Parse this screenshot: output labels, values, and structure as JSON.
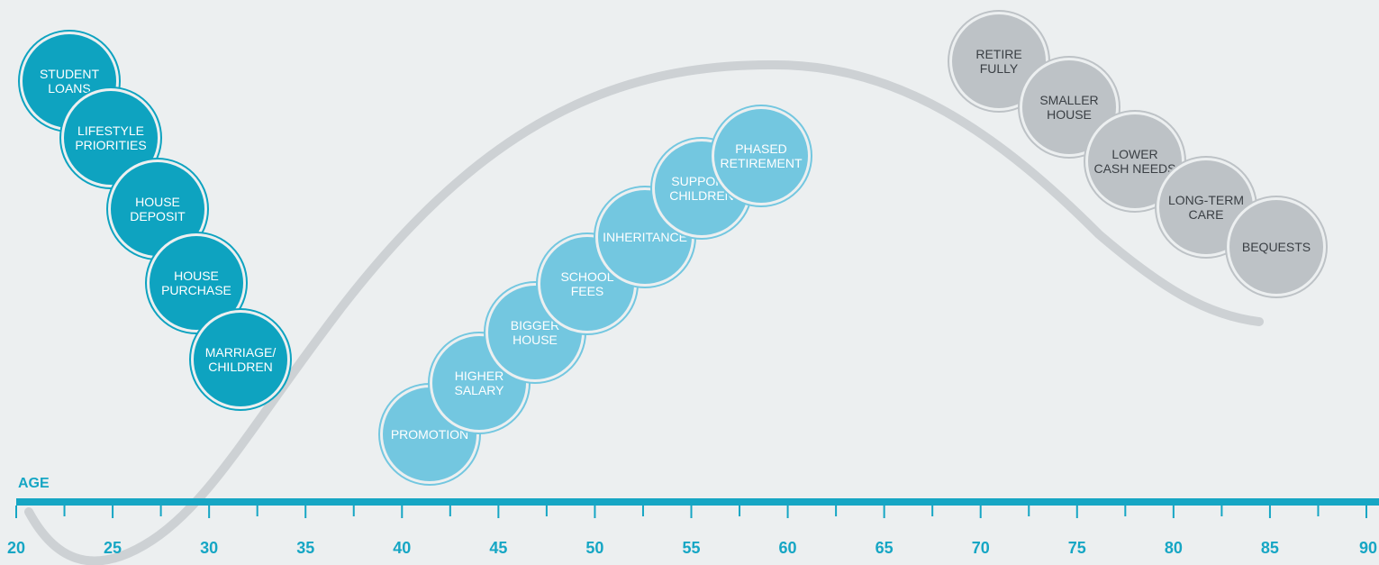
{
  "axis": {
    "label": "AGE",
    "ticks": [
      20,
      25,
      30,
      35,
      40,
      45,
      50,
      55,
      60,
      65,
      70,
      75,
      80,
      85,
      90
    ],
    "range": [
      20,
      90
    ]
  },
  "colors": {
    "background": "#ECEFF0",
    "axis": "#16A6C4",
    "curve": "#CDD1D4",
    "stage_young": "#0EA3C0",
    "stage_mid": "#73C7E0",
    "stage_old": "#BDC2C6"
  },
  "stages": {
    "young": [
      "STUDENT LOANS",
      "LIFESTYLE PRIORITIES",
      "HOUSE DEPOSIT",
      "HOUSE PURCHASE",
      "MARRIAGE/ CHILDREN"
    ],
    "mid": [
      "PROMOTION",
      "HIGHER SALARY",
      "BIGGER HOUSE",
      "SCHOOL FEES",
      "INHERITANCE",
      "SUPPORT CHILDREN",
      "PHASED RETIREMENT"
    ],
    "old": [
      "RETIRE FULLY",
      "SMALLER HOUSE",
      "LOWER CASH NEEDS",
      "LONG-TERM CARE",
      "BEQUESTS"
    ]
  }
}
